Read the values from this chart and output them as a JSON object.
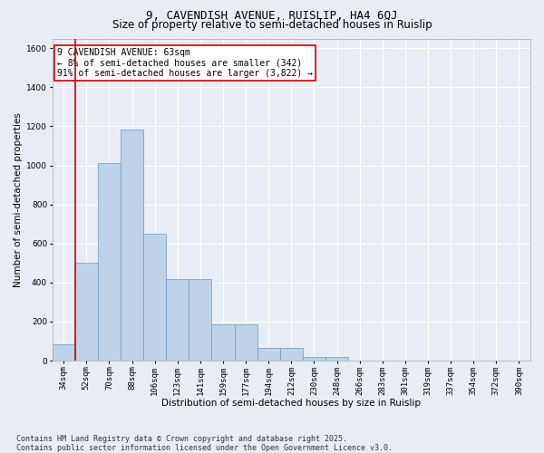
{
  "title_line1": "9, CAVENDISH AVENUE, RUISLIP, HA4 6QJ",
  "title_line2": "Size of property relative to semi-detached houses in Ruislip",
  "xlabel": "Distribution of semi-detached houses by size in Ruislip",
  "ylabel": "Number of semi-detached properties",
  "categories": [
    "34sqm",
    "52sqm",
    "70sqm",
    "88sqm",
    "106sqm",
    "123sqm",
    "141sqm",
    "159sqm",
    "177sqm",
    "194sqm",
    "212sqm",
    "230sqm",
    "248sqm",
    "266sqm",
    "283sqm",
    "301sqm",
    "319sqm",
    "337sqm",
    "354sqm",
    "372sqm",
    "390sqm"
  ],
  "values": [
    85,
    500,
    1010,
    1185,
    650,
    420,
    420,
    185,
    185,
    65,
    65,
    20,
    20,
    0,
    0,
    0,
    0,
    0,
    0,
    0,
    0
  ],
  "bar_color": "#bed3e8",
  "bar_edge_color": "#6699cc",
  "vline_color": "#cc0000",
  "annotation_text": "9 CAVENDISH AVENUE: 63sqm\n← 8% of semi-detached houses are smaller (342)\n91% of semi-detached houses are larger (3,822) →",
  "annotation_box_facecolor": "#ffffff",
  "annotation_box_edgecolor": "#cc0000",
  "ylim": [
    0,
    1650
  ],
  "yticks": [
    0,
    200,
    400,
    600,
    800,
    1000,
    1200,
    1400,
    1600
  ],
  "footnote": "Contains HM Land Registry data © Crown copyright and database right 2025.\nContains public sector information licensed under the Open Government Licence v3.0.",
  "background_color": "#e8edf5",
  "grid_color": "#ffffff",
  "title_fontsize": 9,
  "subtitle_fontsize": 8.5,
  "axis_label_fontsize": 7.5,
  "tick_fontsize": 6.5,
  "annotation_fontsize": 7,
  "footnote_fontsize": 6
}
